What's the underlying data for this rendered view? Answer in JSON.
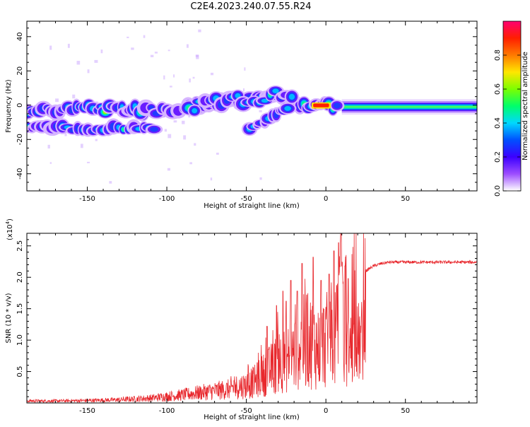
{
  "title": "C2E4.2023.240.07.55.R24",
  "colors": {
    "snr_line": "#e8282d",
    "frame": "#000000"
  },
  "chart_data": [
    {
      "type": "heatmap",
      "xlabel": "Height of straight line (km)",
      "ylabel": "Frequency (Hz)",
      "xlim": [
        -188,
        95
      ],
      "ylim": [
        -50,
        49
      ],
      "x_ticks": [
        -150,
        -100,
        -50,
        0,
        50
      ],
      "y_ticks": [
        -40,
        -20,
        0,
        20,
        40
      ],
      "colorbar": {
        "label": "Normalized spectral amplitude",
        "range": [
          0,
          1
        ],
        "ticks": [
          "0.0",
          "0.2",
          "0.4",
          "0.6",
          "0.8"
        ],
        "tick_values": [
          0,
          0.2,
          0.4,
          0.6,
          0.8
        ],
        "colormap": [
          "#ffffff",
          "#9d4dff",
          "#3c00ff",
          "#0050ff",
          "#00d8ff",
          "#00ff6a",
          "#7cff00",
          "#ffe600",
          "#ff7a00",
          "#ff1f00",
          "#ff0070"
        ]
      },
      "ridges": [
        {
          "name": "main",
          "x": [
            -188,
            -150,
            -120,
            -100,
            -80,
            -65,
            -50,
            -40,
            -30,
            -20,
            -12,
            -5,
            0,
            5,
            10,
            20,
            40,
            60,
            95
          ],
          "y": [
            -3,
            -2,
            -3,
            -3,
            -1,
            2,
            3,
            4,
            6,
            2,
            0,
            0,
            0,
            -1,
            -2,
            -1,
            -1,
            -1,
            -1
          ]
        },
        {
          "name": "lower",
          "x": [
            -188,
            -170,
            -150,
            -140,
            -130,
            -120,
            -110
          ],
          "y": [
            -13,
            -13,
            -14,
            -14,
            -13,
            -13,
            -13
          ]
        },
        {
          "name": "branch",
          "x": [
            -48,
            -40,
            -33,
            -27,
            -22
          ],
          "y": [
            -14,
            -10,
            -6,
            -3,
            -1
          ]
        }
      ]
    },
    {
      "type": "line",
      "xlabel": "Height of straight line (km)",
      "ylabel": "SNR (10 * v/v)",
      "y_multiplier": "(x10",
      "y_multiplier_exp": "4",
      "y_multiplier_close": ")",
      "xlim": [
        -188,
        95
      ],
      "ylim": [
        0,
        2.7
      ],
      "x_ticks": [
        -150,
        -100,
        -50,
        0,
        50
      ],
      "y_ticks": [
        0.5,
        1.0,
        1.5,
        2.0,
        2.5
      ],
      "y_tick_labels": [
        "0.5",
        "1.0",
        "1.5",
        "2.0",
        "2.5"
      ],
      "envelope": {
        "x": [
          -188,
          -170,
          -150,
          -130,
          -110,
          -100,
          -90,
          -80,
          -70,
          -60,
          -50,
          -45,
          -40,
          -35,
          -30,
          -25,
          -20,
          -15,
          -10,
          -5,
          0,
          5,
          8,
          10,
          12,
          15,
          18,
          20,
          25,
          30,
          35,
          40,
          60,
          80,
          90,
          95
        ],
        "y": [
          0.05,
          0.05,
          0.06,
          0.08,
          0.12,
          0.16,
          0.2,
          0.25,
          0.3,
          0.34,
          0.4,
          0.48,
          0.62,
          0.75,
          0.92,
          0.98,
          1.12,
          1.38,
          1.42,
          1.25,
          1.42,
          1.45,
          1.58,
          1.32,
          1.55,
          1.78,
          1.9,
          1.98,
          2.1,
          2.18,
          2.22,
          2.24,
          2.24,
          2.24,
          2.24,
          2.24
        ]
      },
      "spikes": [
        {
          "x": -37,
          "y": 1.22
        },
        {
          "x": -31,
          "y": 1.55
        },
        {
          "x": -27,
          "y": 1.78
        },
        {
          "x": -25,
          "y": 1.62
        },
        {
          "x": -22,
          "y": 1.95
        },
        {
          "x": -18,
          "y": 1.78
        },
        {
          "x": -15,
          "y": 2.22
        },
        {
          "x": -12,
          "y": 1.72
        },
        {
          "x": -8,
          "y": 2.32
        },
        {
          "x": -3,
          "y": 1.95
        },
        {
          "x": 2,
          "y": 2.05
        },
        {
          "x": 5,
          "y": 2.42
        },
        {
          "x": 8,
          "y": 2.55
        },
        {
          "x": 9.5,
          "y": 2.72
        },
        {
          "x": 12,
          "y": 2.18
        },
        {
          "x": 14,
          "y": 1.98
        }
      ]
    }
  ]
}
